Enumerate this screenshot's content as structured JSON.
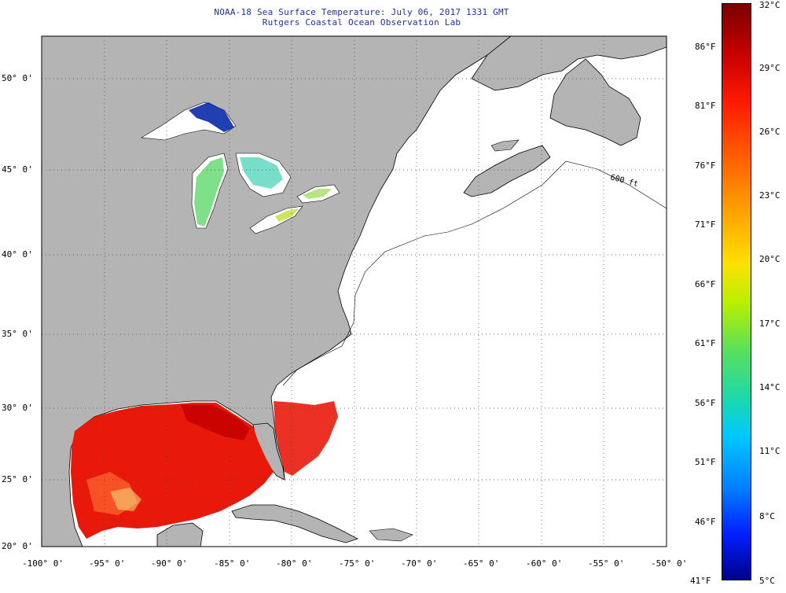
{
  "header": {
    "title_line1": "NOAA-18 Sea Surface Temperature:  July 06, 2017 1331 GMT",
    "title_line2": "Rutgers Coastal Ocean Observation Lab"
  },
  "map": {
    "lon_ticks": [
      "-100° 0'",
      "-95° 0'",
      "-90° 0'",
      "-85° 0'",
      "-80° 0'",
      "-75° 0'",
      "-70° 0'",
      "-65° 0'",
      "-60° 0'",
      "-55° 0'",
      "-50° 0'"
    ],
    "lat_ticks": [
      "50° 0'",
      "45° 0'",
      "40° 0'",
      "35° 0'",
      "30° 0'",
      "25° 0'",
      "20° 0'"
    ],
    "contour_label": "600 ft",
    "colors": {
      "land": "#b4b4b4",
      "ocean_nodata": "#ffffff",
      "grid": "#444444"
    }
  },
  "colorbar": {
    "celsius": [
      "32°C",
      "29°C",
      "26°C",
      "23°C",
      "20°C",
      "17°C",
      "14°C",
      "11°C",
      "8°C",
      "5°C"
    ],
    "fahrenheit": [
      "86°F",
      "81°F",
      "76°F",
      "71°F",
      "66°F",
      "61°F",
      "56°F",
      "51°F",
      "46°F",
      "41°F"
    ]
  }
}
